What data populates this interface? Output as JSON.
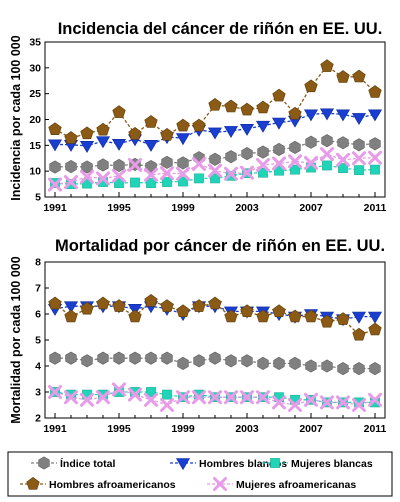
{
  "chart_data": [
    {
      "type": "line",
      "title": "Incidencia del cáncer de riñón en EE. UU.",
      "ylabel": "Incidencia por cada 100 000",
      "xlabel": "",
      "xlim": [
        1991,
        2011
      ],
      "ylim": [
        5,
        35
      ],
      "yticks": [
        5,
        10,
        15,
        20,
        25,
        30,
        35
      ],
      "xticks": [
        1991,
        1995,
        1999,
        2003,
        2007,
        2011
      ],
      "grid": false,
      "x": [
        1991,
        1992,
        1993,
        1994,
        1995,
        1996,
        1997,
        1998,
        1999,
        2000,
        2001,
        2002,
        2003,
        2004,
        2005,
        2006,
        2007,
        2008,
        2009,
        2010,
        2011
      ],
      "series": [
        {
          "name": "Índice total",
          "color": "#808080",
          "marker": "hexagon",
          "values": [
            10.8,
            10.9,
            10.8,
            11.2,
            11.1,
            11.3,
            10.9,
            11.7,
            11.6,
            12.6,
            12.3,
            12.8,
            13.4,
            13.7,
            14.2,
            14.6,
            15.6,
            15.9,
            15.5,
            15.1,
            15.3
          ]
        },
        {
          "name": "Hombres blancos",
          "color": "#1a3fd0",
          "marker": "triangle-down",
          "values": [
            15.2,
            15.1,
            14.9,
            15.8,
            15.3,
            16.2,
            15.1,
            16.6,
            16.4,
            18.0,
            17.5,
            17.8,
            18.2,
            18.8,
            19.4,
            19.8,
            21.0,
            21.2,
            21.0,
            20.3,
            21.0
          ]
        },
        {
          "name": "Mujeres blancas",
          "color": "#20d4b8",
          "marker": "square",
          "values": [
            7.7,
            7.5,
            7.6,
            7.9,
            7.7,
            7.8,
            7.7,
            7.9,
            8.0,
            8.6,
            8.6,
            9.1,
            9.6,
            9.7,
            10.1,
            10.3,
            10.7,
            11.1,
            10.6,
            10.2,
            10.3
          ]
        },
        {
          "name": "Hombres afroamericanos",
          "color": "#8b5a14",
          "marker": "pentagon",
          "values": [
            18.1,
            16.4,
            17.3,
            18.0,
            21.4,
            17.2,
            19.5,
            17.0,
            18.8,
            18.8,
            22.8,
            22.5,
            21.9,
            22.3,
            24.6,
            21.1,
            26.4,
            30.3,
            28.2,
            28.3,
            25.3
          ]
        },
        {
          "name": "Mujeres afroamericanas",
          "color": "#e79be8",
          "marker": "x",
          "values": [
            7.4,
            7.9,
            8.9,
            8.6,
            9.1,
            11.2,
            9.3,
            9.6,
            9.5,
            11.4,
            10.1,
            9.5,
            9.7,
            11.2,
            11.5,
            11.9,
            11.6,
            13.3,
            12.2,
            12.5,
            12.6
          ]
        }
      ]
    },
    {
      "type": "line",
      "title": "Mortalidad por cáncer de riñón en EE. UU.",
      "ylabel": "Mortalidad por cada 100 000",
      "xlabel": "",
      "xlim": [
        1991,
        2011
      ],
      "ylim": [
        2,
        8
      ],
      "yticks": [
        2,
        3,
        4,
        5,
        6,
        7,
        8
      ],
      "xticks": [
        1991,
        1995,
        1999,
        2003,
        2007,
        2011
      ],
      "grid": false,
      "x": [
        1991,
        1992,
        1993,
        1994,
        1995,
        1996,
        1997,
        1998,
        1999,
        2000,
        2001,
        2002,
        2003,
        2004,
        2005,
        2006,
        2007,
        2008,
        2009,
        2010,
        2011
      ],
      "series": [
        {
          "name": "Índice total",
          "color": "#808080",
          "marker": "hexagon",
          "values": [
            4.3,
            4.3,
            4.2,
            4.3,
            4.3,
            4.3,
            4.3,
            4.3,
            4.1,
            4.2,
            4.3,
            4.2,
            4.2,
            4.1,
            4.1,
            4.1,
            4.0,
            4.0,
            3.9,
            3.9,
            3.9
          ]
        },
        {
          "name": "Hombres blancos",
          "color": "#1a3fd0",
          "marker": "triangle-down",
          "values": [
            6.2,
            6.3,
            6.3,
            6.3,
            6.3,
            6.2,
            6.3,
            6.2,
            6.0,
            6.3,
            6.3,
            6.1,
            6.1,
            6.1,
            6.0,
            5.9,
            6.0,
            5.9,
            5.8,
            5.9,
            5.9
          ]
        },
        {
          "name": "Mujeres blancas",
          "color": "#20d4b8",
          "marker": "square",
          "values": [
            3.0,
            2.9,
            2.9,
            2.9,
            3.0,
            3.0,
            3.0,
            2.9,
            2.8,
            2.9,
            2.8,
            2.8,
            2.8,
            2.8,
            2.8,
            2.7,
            2.7,
            2.6,
            2.6,
            2.6,
            2.6
          ]
        },
        {
          "name": "Hombres afroamericanos",
          "color": "#8b5a14",
          "marker": "pentagon",
          "values": [
            6.4,
            5.9,
            6.2,
            6.4,
            6.3,
            5.9,
            6.5,
            6.3,
            6.1,
            6.3,
            6.4,
            5.9,
            6.1,
            5.9,
            6.1,
            5.9,
            5.9,
            5.7,
            5.8,
            5.2,
            5.4
          ]
        },
        {
          "name": "Mujeres afroamericanas",
          "color": "#e79be8",
          "marker": "x",
          "values": [
            3.0,
            2.8,
            2.7,
            2.8,
            3.1,
            2.9,
            2.7,
            2.5,
            2.8,
            2.8,
            2.8,
            2.8,
            2.8,
            2.8,
            2.6,
            2.5,
            2.7,
            2.6,
            2.6,
            2.5,
            2.7
          ]
        }
      ]
    }
  ],
  "legend": {
    "items": [
      "Índice total",
      "Hombres blancos",
      "Mujeres blancas",
      "Hombres afroamericanos",
      "Mujeres afroamericanas"
    ]
  }
}
